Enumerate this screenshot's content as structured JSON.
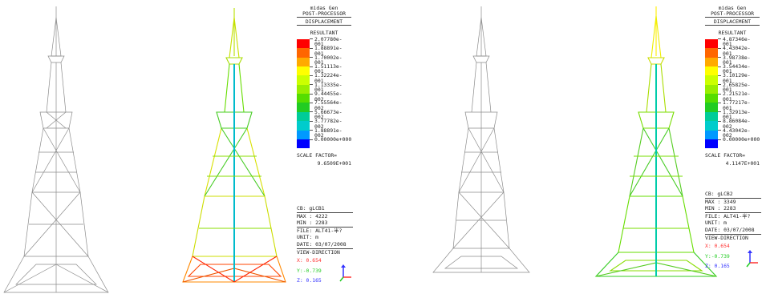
{
  "panels": [
    {
      "id": "a",
      "program": "midas Gen",
      "processor": "POST-PROCESSOR",
      "result_type": "DISPLACEMENT",
      "component": "RESULTANT",
      "scale_values": [
        "2.07780e-001",
        "1.88891e-001",
        "1.70002e-001",
        "1.51113e-001",
        "1.32224e-001",
        "1.13335e-001",
        "9.44455e-002",
        "7.55564e-002",
        "5.66673e-002",
        "3.77782e-002",
        "1.88891e-002",
        "0.00000e+000"
      ],
      "scale_factor_label": "SCALE FACTOR=",
      "scale_factor_value": "9.6509E+001",
      "cb": "CB: gLCB1",
      "max": "MAX : 4222",
      "min": "MIN : 2283",
      "file": "FILE: ALT41-半?",
      "unit": "UNIT: m",
      "date": "DATE: 03/07/2008",
      "view_direction": "VIEW-DIRECTION",
      "vx": "X: 0.654",
      "vy": "Y:-0.739",
      "vz": "Z: 0.165"
    },
    {
      "id": "b",
      "program": "midas Gen",
      "processor": "POST-PROCESSOR",
      "result_type": "DISPLACEMENT",
      "component": "RESULTANT",
      "scale_values": [
        "4.87346e-001",
        "4.43042e-001",
        "3.98738e-001",
        "3.54434e-001",
        "3.10129e-001",
        "2.65825e-001",
        "2.21521e-001",
        "1.77217e-001",
        "1.32913e-001",
        "8.86084e-002",
        "4.43042e-002",
        "0.00000e+000"
      ],
      "scale_factor_label": "SCALE FACTOR=",
      "scale_factor_value": "4.1147E+001",
      "cb": "CB: gLCB2",
      "max": "MAX : 3349",
      "min": "MIN : 2283",
      "file": "FILE: ALT41-半?",
      "unit": "UNIT: m",
      "date": "DATE: 03/07/2008",
      "view_direction": "VIEW-DIRECTION",
      "vx": "X: 0.654",
      "vy": "Y:-0.739",
      "vz": "Z: 0.165"
    }
  ],
  "colors": {
    "contour_scale": [
      "#ff0000",
      "#ff6600",
      "#ffaa00",
      "#ffff00",
      "#ccff00",
      "#99ee00",
      "#55dd00",
      "#22cc22",
      "#00cc99",
      "#00cccc",
      "#0099ff",
      "#0000ff"
    ],
    "axis_x": "#ff3333",
    "axis_y": "#22cc22",
    "axis_z": "#3333ff"
  },
  "icons": [
    "tower-wireframe-icon",
    "deformed-tower-icon",
    "view-direction-axis-icon"
  ]
}
